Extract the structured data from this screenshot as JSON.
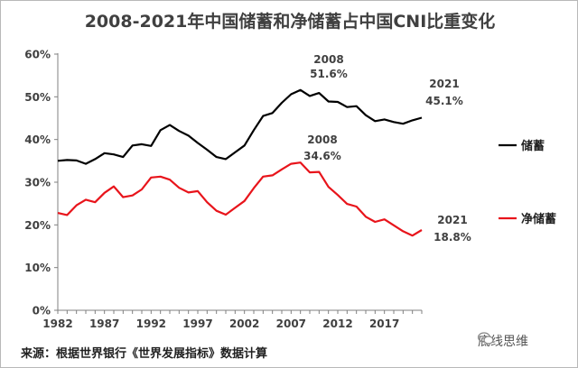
{
  "title": "2008-2021年中国储蓄和净储蓄占中国CNI比重变化",
  "source": "来源：根据世界银行《世界发展指标》数据计算",
  "watermark": "底线思维",
  "colors": {
    "savings": "#000000",
    "net_savings": "#e8141b",
    "axis": "#808080",
    "text": "#404040"
  },
  "chart_data": {
    "type": "line",
    "title": "2008-2021年中国储蓄和净储蓄占中国CNI比重变化",
    "xlabel": "",
    "ylabel": "",
    "ylim": [
      0,
      60
    ],
    "yticks": [
      "0%",
      "10%",
      "20%",
      "30%",
      "40%",
      "50%",
      "60%"
    ],
    "xticks": [
      "1982",
      "1987",
      "1992",
      "1997",
      "2002",
      "2007",
      "2012",
      "2017"
    ],
    "grid": false,
    "legend_placement": "right",
    "x": [
      1982,
      1983,
      1984,
      1985,
      1986,
      1987,
      1988,
      1989,
      1990,
      1991,
      1992,
      1993,
      1994,
      1995,
      1996,
      1997,
      1998,
      1999,
      2000,
      2001,
      2002,
      2003,
      2004,
      2005,
      2006,
      2007,
      2008,
      2009,
      2010,
      2011,
      2012,
      2013,
      2014,
      2015,
      2016,
      2017,
      2018,
      2019,
      2020,
      2021
    ],
    "series": [
      {
        "name": "储蓄",
        "color": "#000000",
        "values": [
          35.0,
          35.2,
          35.1,
          34.3,
          35.4,
          36.8,
          36.5,
          35.9,
          38.6,
          38.9,
          38.5,
          42.2,
          43.4,
          42.0,
          40.9,
          39.2,
          37.6,
          35.9,
          35.4,
          37.0,
          38.6,
          42.2,
          45.5,
          46.2,
          48.6,
          50.6,
          51.6,
          50.2,
          50.9,
          48.9,
          48.8,
          47.6,
          47.8,
          45.7,
          44.3,
          44.7,
          44.1,
          43.7,
          44.5,
          45.1
        ]
      },
      {
        "name": "净储蓄",
        "color": "#e8141b",
        "values": [
          22.8,
          22.3,
          24.6,
          25.9,
          25.3,
          27.5,
          29.0,
          26.5,
          26.9,
          28.3,
          31.1,
          31.3,
          30.6,
          28.7,
          27.6,
          27.9,
          25.3,
          23.3,
          22.4,
          24.0,
          25.6,
          28.6,
          31.3,
          31.6,
          33.0,
          34.3,
          34.6,
          32.3,
          32.4,
          28.9,
          27.0,
          24.9,
          24.3,
          21.9,
          20.7,
          21.3,
          19.9,
          18.5,
          17.5,
          18.8
        ]
      }
    ],
    "annotations": [
      {
        "series": "储蓄",
        "year_label": "2008",
        "value_label": "51.6%"
      },
      {
        "series": "储蓄",
        "year_label": "2021",
        "value_label": "45.1%"
      },
      {
        "series": "净储蓄",
        "year_label": "2008",
        "value_label": "34.6%"
      },
      {
        "series": "净储蓄",
        "year_label": "2021",
        "value_label": "18.8%"
      }
    ]
  }
}
